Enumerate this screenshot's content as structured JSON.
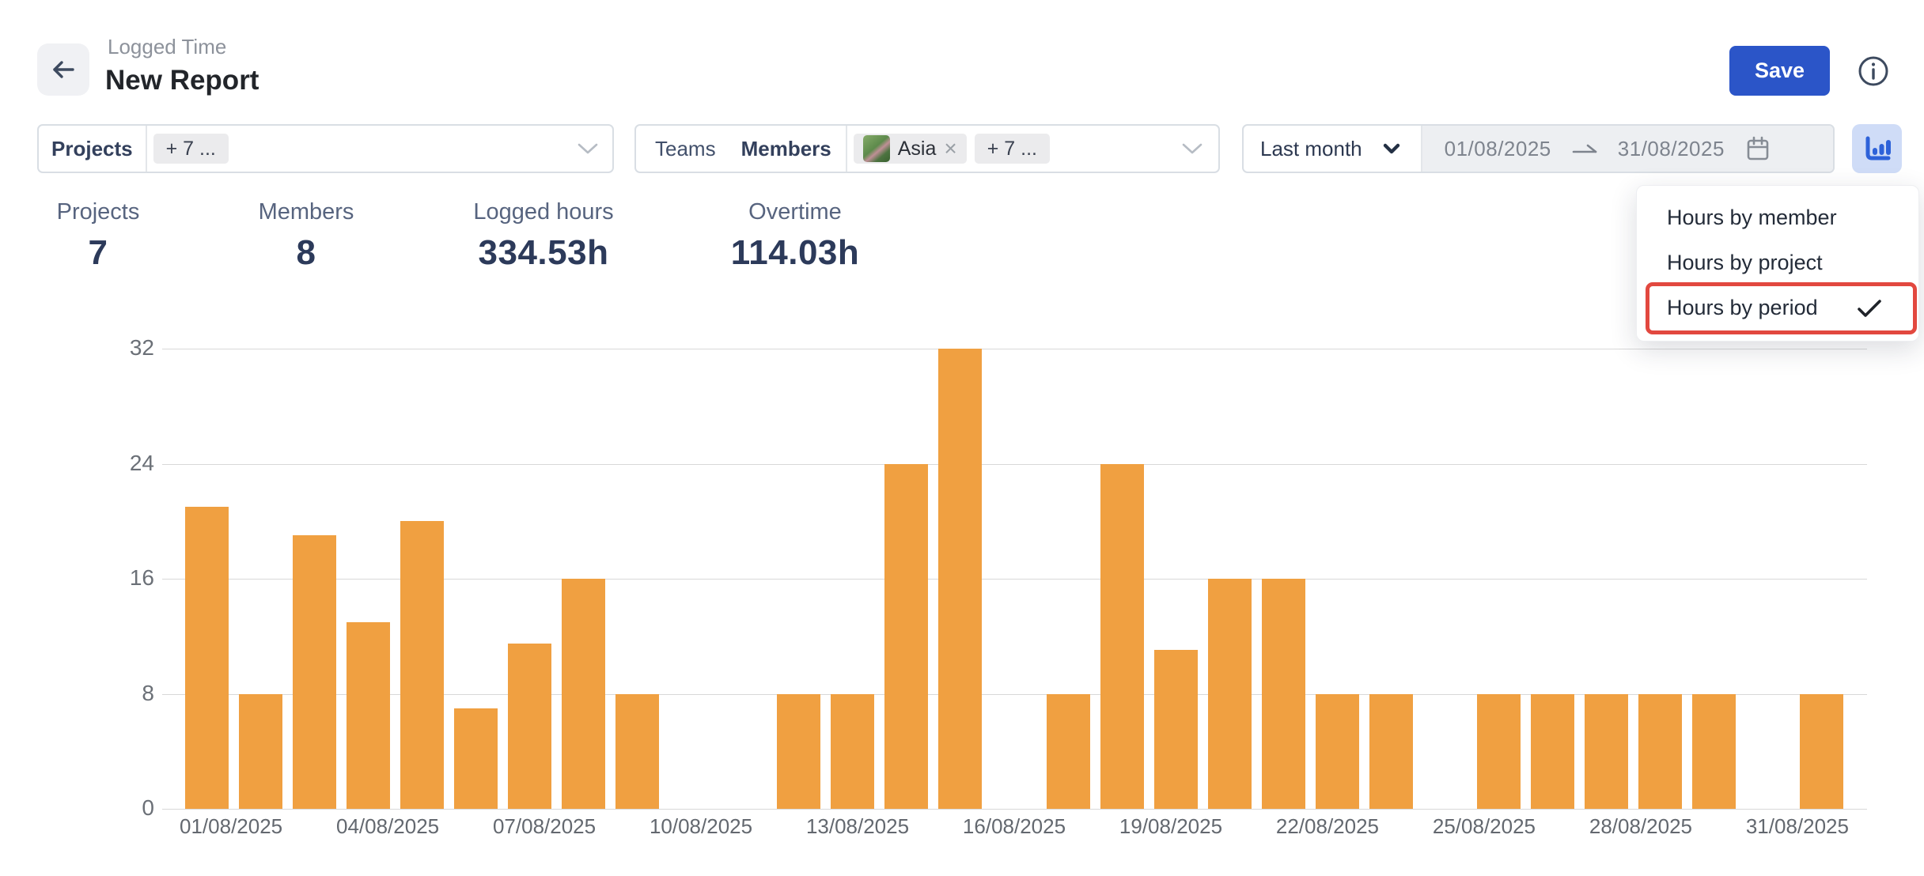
{
  "header": {
    "breadcrumb": "Logged Time",
    "title": "New Report",
    "save_label": "Save"
  },
  "filters": {
    "projects": {
      "label": "Projects",
      "more_chip": "+ 7 ..."
    },
    "team_members": {
      "teams_label": "Teams",
      "members_label": "Members",
      "member_chip": "Asia",
      "more_chip": "+ 7 ..."
    },
    "period": {
      "preset": "Last month",
      "start_date": "01/08/2025",
      "end_date": "31/08/2025"
    }
  },
  "chart_menu": {
    "items": [
      {
        "label": "Hours by member",
        "selected": false
      },
      {
        "label": "Hours by project",
        "selected": false
      },
      {
        "label": "Hours by period",
        "selected": true
      }
    ]
  },
  "stats": [
    {
      "label": "Projects",
      "value": "7"
    },
    {
      "label": "Members",
      "value": "8"
    },
    {
      "label": "Logged hours",
      "value": "334.53h"
    },
    {
      "label": "Overtime",
      "value": "114.03h"
    }
  ],
  "chart_data": {
    "type": "bar",
    "title": "Hours by period",
    "x": [
      "01/08/2025",
      "02/08/2025",
      "03/08/2025",
      "04/08/2025",
      "05/08/2025",
      "06/08/2025",
      "07/08/2025",
      "08/08/2025",
      "09/08/2025",
      "10/08/2025",
      "11/08/2025",
      "12/08/2025",
      "13/08/2025",
      "14/08/2025",
      "15/08/2025",
      "16/08/2025",
      "17/08/2025",
      "18/08/2025",
      "19/08/2025",
      "20/08/2025",
      "21/08/2025",
      "22/08/2025",
      "23/08/2025",
      "24/08/2025",
      "25/08/2025",
      "26/08/2025",
      "27/08/2025",
      "28/08/2025",
      "29/08/2025",
      "30/08/2025",
      "31/08/2025"
    ],
    "values": [
      21,
      8,
      19,
      13,
      20,
      7,
      11.5,
      16,
      8,
      0,
      0,
      8,
      8,
      24,
      32,
      0,
      8,
      24,
      11.03,
      16,
      16,
      8,
      8,
      0,
      8,
      8,
      8,
      8,
      8,
      0,
      8
    ],
    "xlabel": "",
    "ylabel": "",
    "yticks": [
      0,
      8,
      16,
      24,
      32
    ],
    "ylim": [
      0,
      32
    ],
    "xtick_every": 3,
    "grid": true,
    "legend": false,
    "bar_color": "#f0a041"
  },
  "colors": {
    "bar_orange": "#f0a041",
    "accent_blue": "#2b55c8",
    "icon_blue": "#2e62d9",
    "icon_blue_bg": "#cfdcf7",
    "highlight_red": "#e2483f"
  }
}
